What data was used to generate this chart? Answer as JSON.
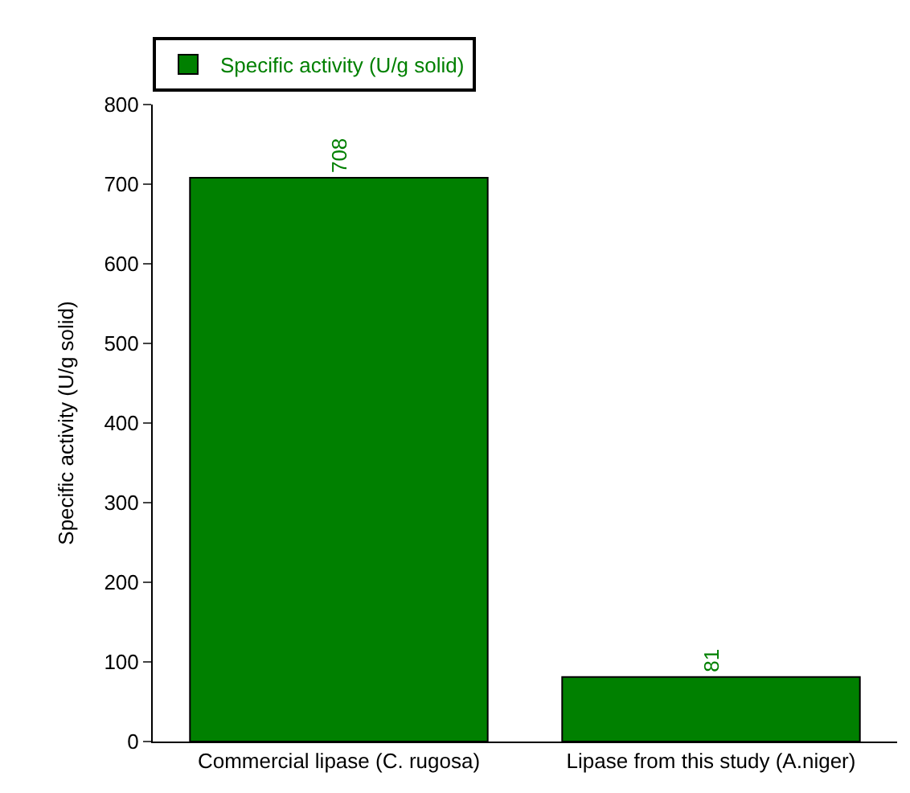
{
  "chart_data": {
    "type": "bar",
    "categories": [
      "Commercial lipase (C. rugosa)",
      "Lipase from this study (A.niger)"
    ],
    "series": [
      {
        "name": "Specific activity (U/g solid)",
        "color": "#008000",
        "values": [
          708,
          81
        ]
      }
    ],
    "ylabel": "Specific activity (U/g solid)",
    "ylim": [
      0,
      800
    ],
    "yticks": [
      0,
      100,
      200,
      300,
      400,
      500,
      600,
      700,
      800
    ],
    "data_labels": true,
    "legend": "top left"
  }
}
